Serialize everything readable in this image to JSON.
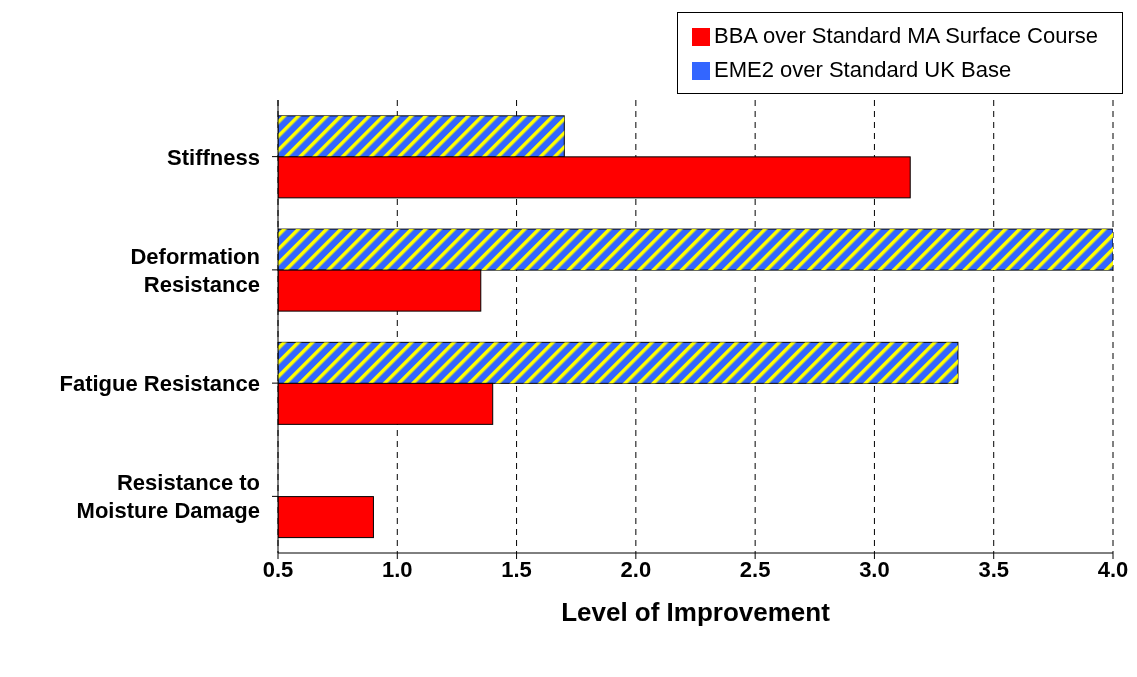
{
  "chart_data": {
    "type": "bar",
    "orientation": "horizontal",
    "xlabel": "Level of Improvement",
    "categories": [
      "Stiffness",
      "Deformation Resistance",
      "Fatigue Resistance",
      "Resistance to Moisture Damage"
    ],
    "series": [
      {
        "name": "BBA over Standard MA Surface Course",
        "color": "#ff0000",
        "values": [
          3.15,
          1.35,
          1.4,
          0.9
        ]
      },
      {
        "name": "EME2 over Standard UK Base",
        "color": "#3366ff",
        "values": [
          1.7,
          4.0,
          3.35,
          null
        ]
      }
    ],
    "xlim": [
      0.5,
      4.0
    ],
    "xticks": [
      0.5,
      {
        "value": 1,
        "label": "1.0"
      },
      1.5,
      {
        "value": 2,
        "label": "2.0"
      },
      2.5,
      {
        "value": 3,
        "label": "3.0"
      },
      3.5,
      {
        "value": 4,
        "label": "4.0"
      }
    ],
    "grid": "x",
    "legend": "top right"
  }
}
